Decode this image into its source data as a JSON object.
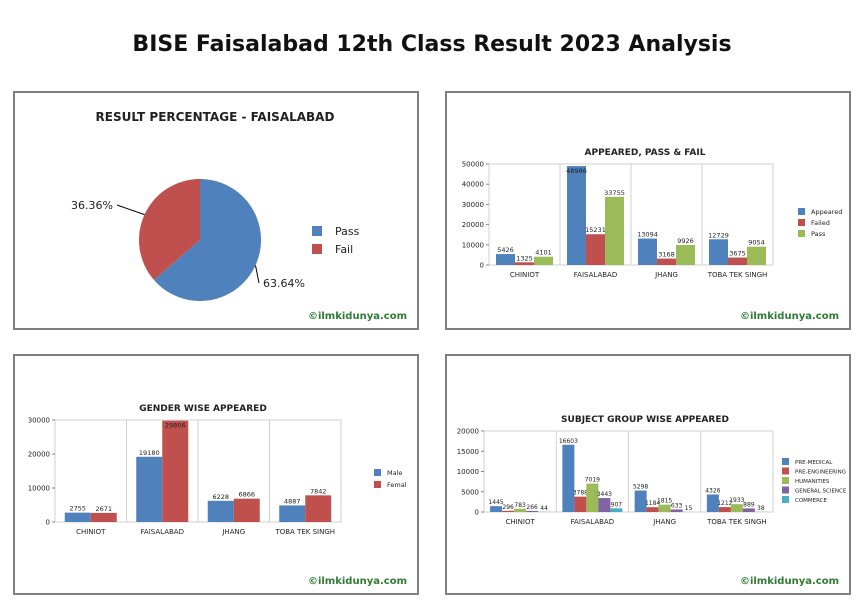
{
  "page": {
    "title": "BISE Faisalabad 12th Class Result 2023 Analysis"
  },
  "colors": {
    "blue": "#4f81bd",
    "red": "#c0504d",
    "green": "#9bbb59",
    "purple": "#8064a2",
    "cyan": "#4bacc6",
    "watermark": "#2e7d32"
  },
  "chart_data": [
    {
      "type": "pie",
      "title": "RESULT PERCENTAGE - FAISALABAD",
      "slices": [
        {
          "name": "Pass",
          "value": 63.64,
          "label": "63.64%",
          "color": "#4f81bd"
        },
        {
          "name": "Fail",
          "value": 36.36,
          "label": "36.36%",
          "color": "#c0504d"
        }
      ],
      "legend": "right",
      "watermark": "©ilmkidunya.com"
    },
    {
      "type": "bar",
      "title": "APPEARED, PASS & FAIL",
      "categories": [
        "CHINIOT",
        "FAISALABAD",
        "JHANG",
        "TOBA TEK SINGH"
      ],
      "series": [
        {
          "name": "Appeared",
          "values": [
            5426,
            48986,
            13094,
            12729
          ],
          "color": "#4f81bd"
        },
        {
          "name": "Failed",
          "values": [
            1325,
            15231,
            3168,
            3675
          ],
          "color": "#c0504d"
        },
        {
          "name": "Pass",
          "values": [
            4101,
            33755,
            9926,
            9054
          ],
          "color": "#9bbb59"
        }
      ],
      "yticks": [
        "0",
        "10000",
        "20000",
        "30000",
        "40000",
        "50000"
      ],
      "ylim": [
        0,
        50000
      ],
      "legend": "right",
      "watermark": "©ilmkidunya.com"
    },
    {
      "type": "bar",
      "title": "GENDER WISE APPEARED",
      "categories": [
        "CHINIOT",
        "FAISALABAD",
        "JHANG",
        "TOBA TEK SINGH"
      ],
      "series": [
        {
          "name": "Male",
          "values": [
            2755,
            19180,
            6228,
            4887
          ],
          "color": "#4f81bd"
        },
        {
          "name": "Femal",
          "values": [
            2671,
            29806,
            6866,
            7842
          ],
          "color": "#c0504d"
        }
      ],
      "yticks": [
        "0",
        "10000",
        "20000",
        "30000"
      ],
      "ylim": [
        0,
        30000
      ],
      "legend": "right",
      "watermark": "©ilmkidunya.com"
    },
    {
      "type": "bar",
      "title": "SUBJECT GROUP WISE APPEARED",
      "categories": [
        "CHINIOT",
        "FAISALABAD",
        "JHANG",
        "TOBA TEK SINGH"
      ],
      "series": [
        {
          "name": "PRE-MEDICAL",
          "values": [
            1445,
            16603,
            5298,
            4326
          ],
          "color": "#4f81bd"
        },
        {
          "name": "PRE-ENGINEERING",
          "values": [
            296,
            3788,
            1184,
            1212
          ],
          "color": "#c0504d"
        },
        {
          "name": "HUMANITIES",
          "values": [
            783,
            7019,
            1815,
            1933
          ],
          "color": "#9bbb59"
        },
        {
          "name": "GENERAL SCIENCE",
          "values": [
            266,
            3443,
            633,
            889
          ],
          "color": "#8064a2"
        },
        {
          "name": "COMMERCE",
          "values": [
            44,
            907,
            15,
            38
          ],
          "color": "#4bacc6"
        }
      ],
      "yticks": [
        "0",
        "5000",
        "10000",
        "15000",
        "20000"
      ],
      "ylim": [
        0,
        20000
      ],
      "legend": "right",
      "watermark": "©ilmkidunya.com"
    }
  ]
}
